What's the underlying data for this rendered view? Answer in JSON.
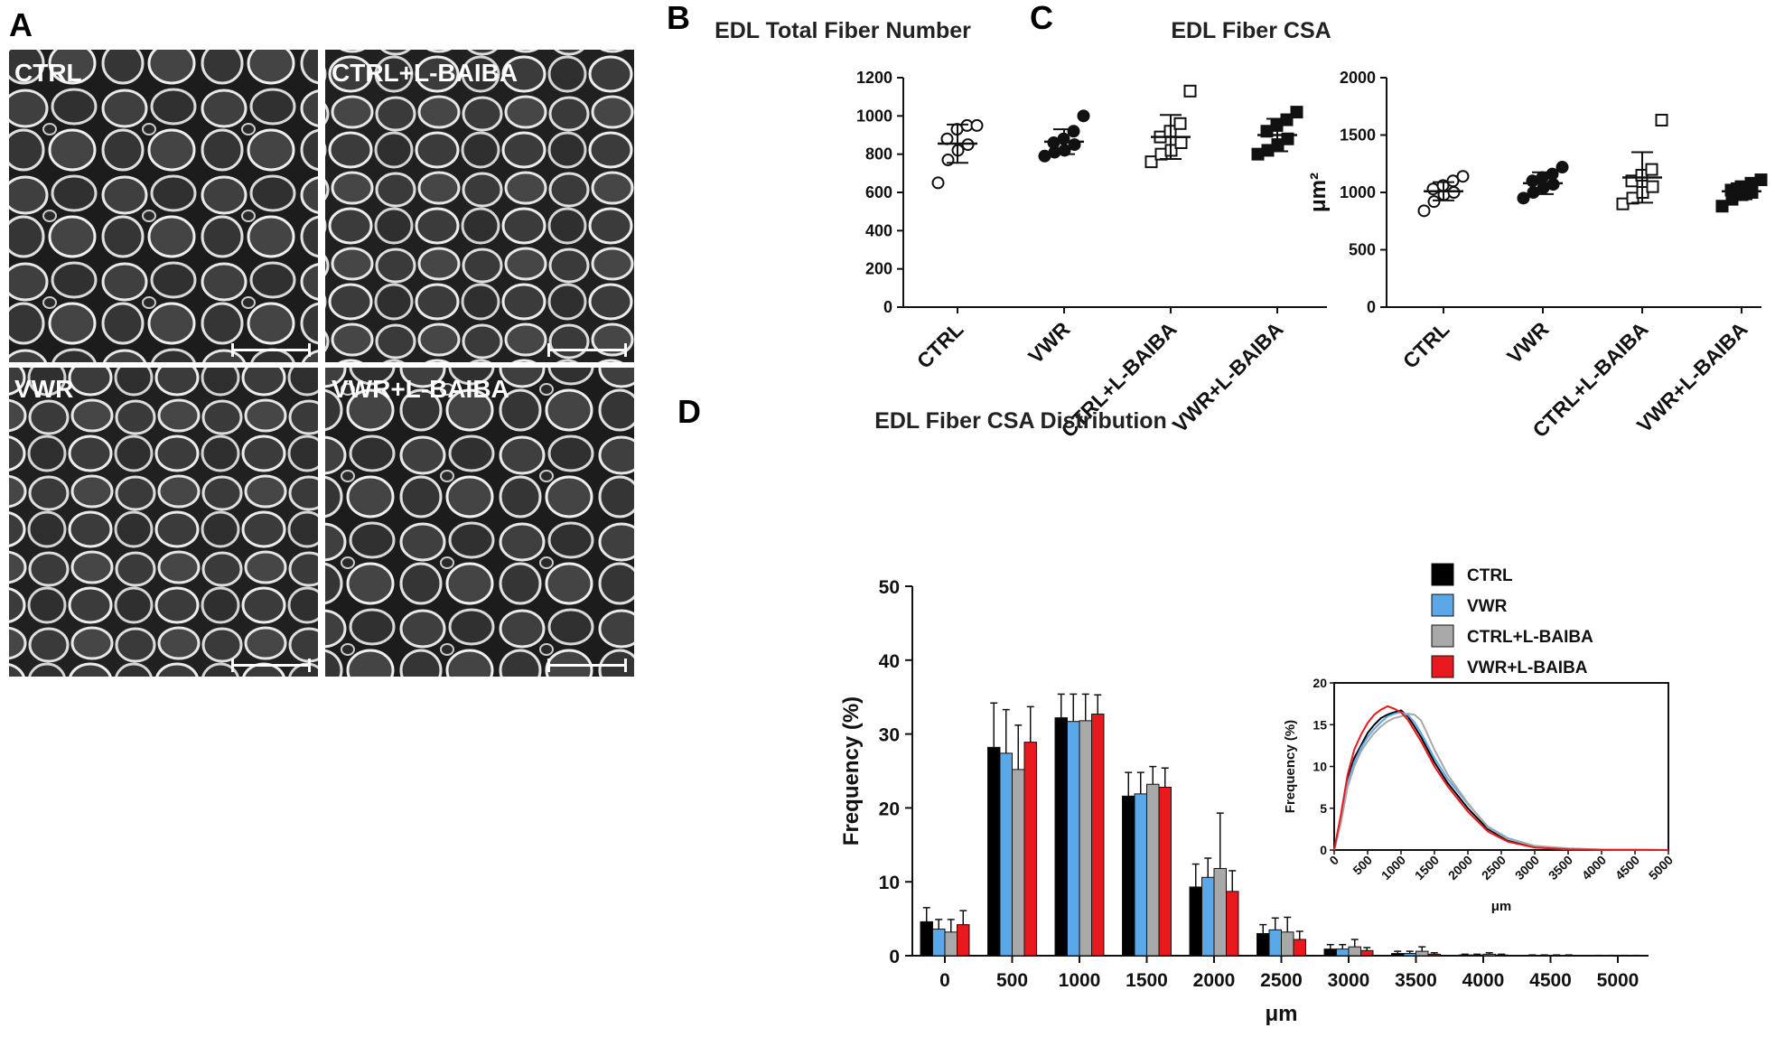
{
  "panel_a": {
    "letter": "A",
    "images": [
      {
        "label": "CTRL",
        "key": "ctrl"
      },
      {
        "label": "CTRL+L-BAIBA",
        "key": "ctrl_baiba"
      },
      {
        "label": "VWR",
        "key": "vwr"
      },
      {
        "label": "VWR+L-BAIBA",
        "key": "vwr_baiba"
      }
    ]
  },
  "chart_data": [
    {
      "id": "B",
      "letter": "B",
      "type": "scatter",
      "title": "EDL Total Fiber Number",
      "ylabel": "",
      "ylim": [
        0,
        1200
      ],
      "yticks": [
        0,
        200,
        400,
        600,
        800,
        1000,
        1200
      ],
      "categories": [
        "CTRL",
        "VWR",
        "CTRL+L-BAIBA",
        "VWR+L-BAIBA"
      ],
      "markers": [
        "circle-open",
        "circle-filled",
        "square-open",
        "square-filled"
      ],
      "points": [
        [
          650,
          770,
          820,
          850,
          880,
          930,
          950,
          950
        ],
        [
          790,
          810,
          820,
          850,
          860,
          880,
          920,
          1000
        ],
        [
          760,
          800,
          820,
          860,
          890,
          920,
          960,
          1130
        ],
        [
          800,
          820,
          850,
          880,
          920,
          950,
          980,
          1020
        ]
      ],
      "mean": [
        855,
        865,
        890,
        900
      ],
      "sd": [
        100,
        65,
        115,
        85
      ]
    },
    {
      "id": "C",
      "letter": "C",
      "type": "scatter",
      "title": "EDL Fiber CSA",
      "ylabel": "μm²",
      "ylim": [
        0,
        2000
      ],
      "yticks": [
        0,
        500,
        1000,
        1500,
        2000
      ],
      "categories": [
        "CTRL",
        "VWR",
        "CTRL+L-BAIBA",
        "VWR+L-BAIBA"
      ],
      "markers": [
        "circle-open",
        "circle-filled",
        "square-open",
        "square-filled"
      ],
      "points": [
        [
          840,
          920,
          980,
          1000,
          1030,
          1060,
          1100,
          1140
        ],
        [
          950,
          1000,
          1040,
          1070,
          1100,
          1130,
          1160,
          1220
        ],
        [
          900,
          950,
          1000,
          1050,
          1100,
          1150,
          1200,
          1630
        ],
        [
          880,
          940,
          980,
          1000,
          1020,
          1050,
          1080,
          1110
        ]
      ],
      "mean": [
        1010,
        1080,
        1130,
        1010
      ],
      "sd": [
        80,
        95,
        220,
        70
      ]
    },
    {
      "id": "D",
      "letter": "D",
      "type": "bar",
      "title": "EDL Fiber CSA Distribution",
      "xlabel": "μm",
      "ylabel": "Frequency (%)",
      "ylim": [
        0,
        50
      ],
      "yticks": [
        0,
        10,
        20,
        30,
        40,
        50
      ],
      "categories": [
        "0",
        "500",
        "1000",
        "1500",
        "2000",
        "2500",
        "3000",
        "3500",
        "4000",
        "4500",
        "5000"
      ],
      "series": [
        {
          "name": "CTRL",
          "color": "#000000",
          "values": [
            4.6,
            28.2,
            32.2,
            21.6,
            9.3,
            3.0,
            0.9,
            0.3,
            0.1,
            0.05,
            0.02
          ],
          "errors": [
            1.9,
            6.0,
            3.2,
            3.2,
            3.1,
            1.2,
            0.6,
            0.3,
            0.1,
            0.05,
            0.02
          ]
        },
        {
          "name": "VWR",
          "color": "#5aa8e8",
          "values": [
            3.6,
            27.4,
            31.7,
            21.9,
            10.6,
            3.5,
            0.9,
            0.3,
            0.1,
            0.05,
            0.02
          ],
          "errors": [
            1.3,
            5.9,
            3.7,
            2.9,
            2.6,
            1.6,
            0.6,
            0.3,
            0.1,
            0.05,
            0.02
          ]
        },
        {
          "name": "CTRL+L-BAIBA",
          "color": "#a8a8a8",
          "values": [
            3.2,
            25.2,
            31.8,
            23.2,
            11.8,
            3.2,
            1.2,
            0.6,
            0.2,
            0.05,
            0.02
          ],
          "errors": [
            1.7,
            6.0,
            3.6,
            2.4,
            7.5,
            2.0,
            1.0,
            0.6,
            0.2,
            0.05,
            0.02
          ]
        },
        {
          "name": "VWR+L-BAIBA",
          "color": "#e8181c",
          "values": [
            4.2,
            28.9,
            32.7,
            22.8,
            8.7,
            2.2,
            0.7,
            0.2,
            0.1,
            0.05,
            0.02
          ],
          "errors": [
            1.9,
            4.8,
            2.6,
            2.6,
            2.8,
            1.1,
            0.4,
            0.2,
            0.1,
            0.05,
            0.02
          ]
        }
      ],
      "legend_position": "top-right",
      "inset": {
        "type": "line",
        "ylabel": "Frequency (%)",
        "xlabel": "μm",
        "xlim": [
          0,
          5000
        ],
        "ylim": [
          0,
          20
        ],
        "xticks": [
          0,
          500,
          1000,
          1500,
          2000,
          2500,
          3000,
          3500,
          4000,
          4500,
          5000
        ],
        "yticks": [
          0,
          5,
          10,
          15,
          20
        ],
        "x": [
          0,
          100,
          200,
          300,
          400,
          500,
          600,
          700,
          800,
          900,
          1000,
          1100,
          1200,
          1300,
          1400,
          1500,
          1700,
          2000,
          2300,
          2600,
          3000,
          3500,
          4000,
          4500,
          5000
        ],
        "series": [
          {
            "name": "CTRL",
            "color": "#000000",
            "values": [
              0,
              4.0,
              8.5,
              11.0,
              12.5,
              14.0,
              15.0,
              15.8,
              16.2,
              16.5,
              16.7,
              16.0,
              14.8,
              13.5,
              12.0,
              10.5,
              8.0,
              5.0,
              2.5,
              1.2,
              0.4,
              0.1,
              0.03,
              0.01,
              0
            ]
          },
          {
            "name": "VWR",
            "color": "#5aa8e8",
            "values": [
              0,
              3.5,
              8.0,
              10.5,
              12.2,
              13.5,
              14.5,
              15.3,
              16.0,
              16.3,
              16.5,
              16.2,
              15.3,
              14.0,
              12.5,
              11.0,
              8.5,
              5.5,
              2.8,
              1.4,
              0.5,
              0.1,
              0.03,
              0.01,
              0
            ]
          },
          {
            "name": "CTRL+L-BAIBA",
            "color": "#a8a8a8",
            "values": [
              0,
              3.2,
              7.5,
              10.0,
              11.8,
              13.0,
              14.0,
              14.8,
              15.4,
              15.8,
              16.0,
              16.3,
              16.2,
              15.5,
              13.8,
              12.0,
              9.0,
              5.6,
              2.7,
              1.3,
              0.5,
              0.2,
              0.05,
              0.01,
              0
            ]
          },
          {
            "name": "VWR+L-BAIBA",
            "color": "#e8181c",
            "values": [
              0,
              4.2,
              9.0,
              12.0,
              13.8,
              15.2,
              16.2,
              16.8,
              17.2,
              16.9,
              16.5,
              15.6,
              14.3,
              13.0,
              11.5,
              10.0,
              7.6,
              4.6,
              2.2,
              1.0,
              0.3,
              0.08,
              0.02,
              0.01,
              0
            ]
          }
        ]
      }
    }
  ]
}
